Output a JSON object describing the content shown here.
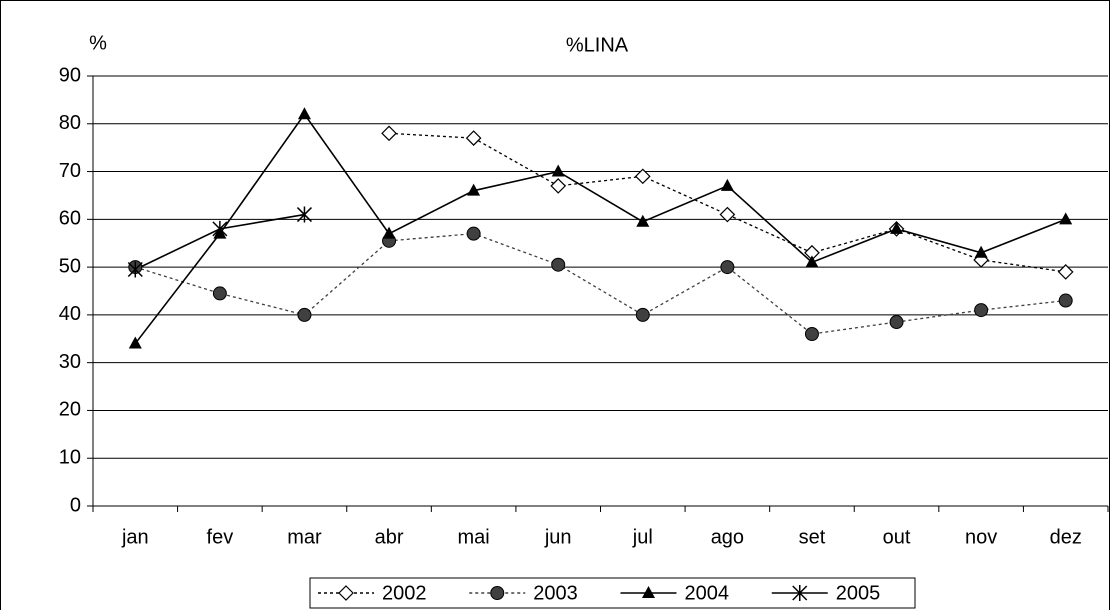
{
  "chart_data": {
    "type": "line",
    "title": "%LINA",
    "y_label": "%",
    "categories": [
      "jan",
      "fev",
      "mar",
      "abr",
      "mai",
      "jun",
      "jul",
      "ago",
      "set",
      "out",
      "nov",
      "dez"
    ],
    "series": [
      {
        "name": "2002",
        "color": "#000000",
        "marker": "diamond",
        "dashed": true,
        "values": [
          null,
          null,
          null,
          78,
          77,
          67,
          69,
          61,
          53,
          58,
          51.5,
          49
        ]
      },
      {
        "name": "2003",
        "color": "#404040",
        "marker": "circle",
        "dashed": true,
        "values": [
          50,
          44.5,
          40,
          55.5,
          57,
          50.5,
          40,
          50,
          36,
          38.5,
          41,
          43
        ]
      },
      {
        "name": "2004",
        "color": "#000000",
        "marker": "triangle",
        "dashed": false,
        "values": [
          34,
          57,
          82,
          57,
          66,
          70,
          59.5,
          67,
          51,
          58,
          53,
          60
        ]
      },
      {
        "name": "2005",
        "color": "#000000",
        "marker": "star",
        "dashed": false,
        "values": [
          49.5,
          58,
          61,
          null,
          null,
          null,
          null,
          null,
          null,
          null,
          null,
          null
        ]
      }
    ],
    "ylim": [
      0,
      90
    ],
    "yticks": [
      0,
      10,
      20,
      30,
      40,
      50,
      60,
      70,
      80,
      90
    ],
    "grid": true,
    "legend": "bottom"
  }
}
